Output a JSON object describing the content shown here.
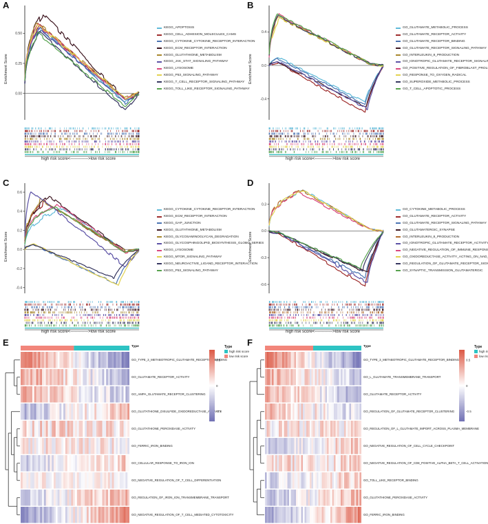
{
  "chart_data": [
    {
      "id": "A",
      "panel_letter": "A",
      "type": "line",
      "ylabel": "Enrichment Score",
      "xlabel": "high risk score<------------->low risk score",
      "yticks": [
        "0.50",
        "0.25",
        "0.00"
      ],
      "ylim": [
        -0.22,
        0.72
      ],
      "series": [
        {
          "name": "KEGG_APOPTOSIS",
          "color": "#5EB9D8",
          "peak": 0.55,
          "peak_pos": 0.12,
          "tail": -0.07
        },
        {
          "name": "KEGG_CELL_ADHESION_MOLECULES_CAMS",
          "color": "#9E2B2B",
          "peak": 0.57,
          "peak_pos": 0.13,
          "tail": -0.05
        },
        {
          "name": "KEGG_CYTOKINE_CYTOKINE_RECEPTOR_INTERACTION",
          "color": "#4A73B2",
          "peak": 0.54,
          "peak_pos": 0.14,
          "tail": -0.08
        },
        {
          "name": "KEGG_ECM_RECEPTOR_INTERACTION",
          "color": "#3D1620",
          "peak": 0.66,
          "peak_pos": 0.16,
          "tail": -0.05
        },
        {
          "name": "KEGG_GLUTATHIONE_METABOLISM",
          "color": "#A8872C",
          "peak": 0.59,
          "peak_pos": 0.11,
          "tail": -0.04
        },
        {
          "name": "KEGG_JAK_STAT_SIGNALING_PATHWAY",
          "color": "#5B51A5",
          "peak": 0.55,
          "peak_pos": 0.12,
          "tail": -0.06
        },
        {
          "name": "KEGG_LYSOSOME",
          "color": "#D9487E",
          "peak": 0.57,
          "peak_pos": 0.12,
          "tail": -0.05
        },
        {
          "name": "KEGG_P53_SIGNALING_PATHWAY",
          "color": "#E3D24F",
          "peak": 0.58,
          "peak_pos": 0.11,
          "tail": -0.04
        },
        {
          "name": "KEGG_T_CELL_RECEPTOR_SIGNALING_PATHWAY",
          "color": "#35355F",
          "peak": 0.51,
          "peak_pos": 0.13,
          "tail": -0.14
        },
        {
          "name": "KEGG_TOLL_LIKE_RECEPTOR_SIGNALING_PATHWAY",
          "color": "#57A24E",
          "peak": 0.5,
          "peak_pos": 0.12,
          "tail": -0.11
        }
      ]
    },
    {
      "id": "B",
      "panel_letter": "B",
      "type": "line",
      "ylabel": "Enrichment Score",
      "xlabel": "high risk score<------------->low risk score",
      "yticks": [
        "0.4",
        "0.0",
        "-0.4"
      ],
      "ylim": [
        -0.65,
        0.7
      ],
      "series": [
        {
          "name": "GO_GLUTAMATE_METABOLIC_PROCESS",
          "color": "#5EB9D8",
          "peak": -0.44,
          "peak_pos": 0.84,
          "tail": 0.1
        },
        {
          "name": "GO_GLUTAMATE_RECEPTOR_ACTIVITY",
          "color": "#9E2B2B",
          "peak": -0.56,
          "peak_pos": 0.84,
          "tail": 0.03
        },
        {
          "name": "GO_GLUTAMATE_RECEPTOR_BINDING",
          "color": "#4A73B2",
          "peak": -0.47,
          "peak_pos": 0.84,
          "tail": 0.08
        },
        {
          "name": "GO_GLUTAMATE_RECEPTOR_SIGNALING_PATHWAY",
          "color": "#3D1620",
          "peak": -0.5,
          "peak_pos": 0.85,
          "tail": 0.04
        },
        {
          "name": "GO_INTERLEUKIN_8_PRODUCTION",
          "color": "#A8872C",
          "peak": 0.58,
          "peak_pos": 0.08,
          "tail": 0.02
        },
        {
          "name": "GO_IONOTROPIC_GLUTAMATE_RECEPTOR_SIGNALING_PATHWAY",
          "color": "#5B51A5",
          "peak": -0.52,
          "peak_pos": 0.86,
          "tail": 0.05
        },
        {
          "name": "GO_POSITIVE_REGULATION_OF_FIBROBLAST_PROLIFERATION",
          "color": "#D9487E",
          "peak": 0.6,
          "peak_pos": 0.09,
          "tail": 0.02
        },
        {
          "name": "GO_RESPONSE_TO_OXYGEN_RADICAL",
          "color": "#E3D24F",
          "peak": 0.56,
          "peak_pos": 0.1,
          "tail": 0.02
        },
        {
          "name": "GO_SUPEROXIDE_METABOLIC_PROCESS",
          "color": "#35355F",
          "peak": 0.59,
          "peak_pos": 0.08,
          "tail": 0.02
        },
        {
          "name": "GO_T_CELL_APOPTOTIC_PROCESS",
          "color": "#57A24E",
          "peak": 0.62,
          "peak_pos": 0.07,
          "tail": 0.02
        }
      ]
    },
    {
      "id": "C",
      "panel_letter": "C",
      "type": "line",
      "ylabel": "Enrichment Score",
      "xlabel": "high risk score<------------->low risk score",
      "yticks": [
        "0.6",
        "0.4",
        "0.2",
        "0.0",
        "-0.2",
        "-0.4"
      ],
      "ylim": [
        -0.46,
        0.68
      ],
      "series": [
        {
          "name": "KEGG_CYTOKINE_CYTOKINE_RECEPTOR_INTERACTION",
          "color": "#5EB9D8",
          "peak": 0.43,
          "peak_pos": 0.33,
          "tail": -0.02
        },
        {
          "name": "KEGG_ECM_RECEPTOR_INTERACTION",
          "color": "#9E2B2B",
          "peak": 0.5,
          "peak_pos": 0.18,
          "tail": -0.03
        },
        {
          "name": "KEGG_GAP_JUNCTION",
          "color": "#4A73B2",
          "peak": -0.36,
          "peak_pos": 0.8,
          "tail": 0.05
        },
        {
          "name": "KEGG_GLUTATHIONE_METABOLISM",
          "color": "#3D1620",
          "peak": 0.55,
          "peak_pos": 0.22,
          "tail": -0.02
        },
        {
          "name": "KEGG_GLYCOSAMINOGLYCAN_DEGRADATION",
          "color": "#A8872C",
          "peak": 0.52,
          "peak_pos": 0.14,
          "tail": -0.02
        },
        {
          "name": "KEGG_GLYCOSPHINGOLIPID_BIOSYNTHESIS_GLOBO_SERIES",
          "color": "#5B51A5",
          "peak": 0.62,
          "peak_pos": 0.05,
          "tail": -0.18
        },
        {
          "name": "KEGG_LYSOSOME",
          "color": "#D9487E",
          "peak": 0.48,
          "peak_pos": 0.28,
          "tail": -0.03
        },
        {
          "name": "KEGG_MTOR_SIGNALING_PATHWAY",
          "color": "#E3D24F",
          "peak": -0.38,
          "peak_pos": 0.82,
          "tail": 0.06
        },
        {
          "name": "KEGG_NEUROACTIVE_LIGAND_RECEPTOR_INTERACTION",
          "color": "#35355F",
          "peak": -0.3,
          "peak_pos": 0.78,
          "tail": 0.05
        },
        {
          "name": "KEGG_P53_SIGNALING_PATHWAY",
          "color": "#57A24E",
          "peak": 0.45,
          "peak_pos": 0.25,
          "tail": -0.03
        }
      ]
    },
    {
      "id": "D",
      "panel_letter": "D",
      "type": "line",
      "ylabel": "Enrichment Score",
      "xlabel": "high risk score<------------->low risk score",
      "yticks": [
        "0.3",
        "0.0",
        "-0.3",
        "-0.6"
      ],
      "ylim": [
        -0.7,
        0.52
      ],
      "series": [
        {
          "name": "GO_CYTOKINE_METABOLIC_PROCESS",
          "color": "#5EB9D8",
          "peak": 0.46,
          "peak_pos": 0.3,
          "tail": 0.02
        },
        {
          "name": "GO_GLUTAMATE_RECEPTOR_ACTIVITY",
          "color": "#9E2B2B",
          "peak": -0.62,
          "peak_pos": 0.84,
          "tail": -0.02
        },
        {
          "name": "GO_GLUTAMATE_RECEPTOR_SIGNALING_PATHWAY",
          "color": "#4A73B2",
          "peak": -0.52,
          "peak_pos": 0.84,
          "tail": -0.02
        },
        {
          "name": "GO_GLUTAMATERGIC_SYNAPSE",
          "color": "#3D1620",
          "peak": -0.47,
          "peak_pos": 0.86,
          "tail": -0.02
        },
        {
          "name": "GO_INTERLEUKIN_8_PRODUCTION",
          "color": "#B06A2C",
          "peak": 0.46,
          "peak_pos": 0.28,
          "tail": 0.02
        },
        {
          "name": "GO_IONOTROPIC_GLUTAMATE_RECEPTOR_ACTIVITY",
          "color": "#5B51A5",
          "peak": -0.58,
          "peak_pos": 0.86,
          "tail": -0.02
        },
        {
          "name": "GO_NEGATIVE_REGULATION_OF_IMMUNE_RESPONSE",
          "color": "#D9487E",
          "peak": 0.43,
          "peak_pos": 0.26,
          "tail": 0.02
        },
        {
          "name": "GO_OXIDOREDUCTASE_ACTIVITY_ACTING_ON_NAD_P_H",
          "color": "#E3D24F",
          "peak": 0.45,
          "peak_pos": 0.3,
          "tail": 0.02
        },
        {
          "name": "GO_REGULATION_OF_GLUTAMATE_RECEPTOR_SIGNALING_PATHWAY",
          "color": "#35355F",
          "peak": -0.44,
          "peak_pos": 0.82,
          "tail": -0.02
        },
        {
          "name": "GO_SYNAPTIC_TRANSMISSION_GLUTAMATERGIC",
          "color": "#57A24E",
          "peak": -0.42,
          "peak_pos": 0.8,
          "tail": -0.02
        }
      ]
    },
    {
      "id": "E",
      "panel_letter": "E",
      "type": "heatmap",
      "annotation": {
        "title": "Type",
        "segments": [
          {
            "group": "low risk score",
            "color": "#F2867B",
            "frac": 0.49
          },
          {
            "group": "high risk score",
            "color": "#2EC3C3",
            "frac": 0.51
          }
        ]
      },
      "legend": {
        "title": "Type",
        "items": [
          {
            "label": "high risk score",
            "color": "#2EC3C3"
          },
          {
            "label": "low risk score",
            "color": "#F2867B"
          }
        ]
      },
      "colorbar": {
        "ticks": [
          "0.5",
          "0",
          "-0.5"
        ],
        "top_color": "#DC5844",
        "mid_color": "#FFFFFF",
        "bottom_color": "#7070B4"
      },
      "rows": [
        {
          "label": "GO_TYPE_3_METABOTROPIC_GLUTAMATE_RECEPTOR_BINDING",
          "bias": 1,
          "strength": 0.85,
          "base": 0,
          "noise": 0.5
        },
        {
          "label": "GO_GLUTAMATE_RECEPTOR_ACTIVITY",
          "bias": 1,
          "strength": 0.55,
          "base": 0.05,
          "noise": 0.55
        },
        {
          "label": "GO_AMPA_GLUTAMATE_RECEPTOR_CLUSTERING",
          "bias": 1,
          "strength": 0.4,
          "base": 0.05,
          "noise": 0.6
        },
        {
          "label": "GO_GLUTATHIONE_DISULFIDE_OXIDOREDUCTASE_ACTIVITY",
          "bias": -1,
          "strength": 0.5,
          "base": 0,
          "noise": 0.6
        },
        {
          "label": "GO_GLUTATHIONE_PEROXIDASE_ACTIVITY",
          "bias": 0,
          "strength": 0,
          "base": 0.18,
          "noise": 0.65
        },
        {
          "label": "GO_FERRIC_IRON_BINDING",
          "bias": 0,
          "strength": 0,
          "base": 0.08,
          "noise": 0.6
        },
        {
          "label": "GO_CELLULAR_RESPONSE_TO_IRON_ION",
          "bias": -1,
          "strength": 0.3,
          "base": 0,
          "noise": 0.55
        },
        {
          "label": "GO_NEGATIVE_REGULATION_OF_T_CELL_DIFFERENTIATION",
          "bias": 0,
          "strength": 0,
          "base": 0.05,
          "noise": 0.45
        },
        {
          "label": "GO_REGULATION_OF_IRON_ION_TRANSMEMBRANE_TRANSPORT",
          "bias": -1,
          "strength": 0.45,
          "base": 0.05,
          "noise": 0.55
        },
        {
          "label": "GO_NEGATIVE_REGULATION_OF_T_CELL_MEDIATED_CYTOTOXICITY",
          "bias": -1,
          "strength": 0.7,
          "base": 0,
          "noise": 0.5
        }
      ],
      "dendrogram": [
        [
          0,
          [
            1,
            2
          ]
        ],
        [
          [
            3,
            [
              [
                4,
                5
              ],
              [
                6,
                7
              ]
            ]
          ],
          [
            8,
            9
          ]
        ]
      ]
    },
    {
      "id": "F",
      "panel_letter": "F",
      "type": "heatmap",
      "annotation": {
        "title": "Type",
        "segments": [
          {
            "group": "low risk score",
            "color": "#F2867B",
            "frac": 0.5
          },
          {
            "group": "high risk score",
            "color": "#2EC3C3",
            "frac": 0.5
          }
        ]
      },
      "legend": {
        "title": "Type",
        "items": [
          {
            "label": "high risk score",
            "color": "#2EC3C3"
          },
          {
            "label": "low risk score",
            "color": "#F2867B"
          }
        ]
      },
      "colorbar": {
        "ticks": [
          "0.5",
          "0",
          "-0.5"
        ],
        "top_color": "#DC5844",
        "mid_color": "#FFFFFF",
        "bottom_color": "#7070B4"
      },
      "rows": [
        {
          "label": "GO_TYPE_3_METABOTROPIC_GLUTAMATE_RECEPTOR_BINDING",
          "bias": 1,
          "strength": 0.85,
          "base": 0,
          "noise": 0.5
        },
        {
          "label": "GO_L_GLUTAMATE_TRANSMEMBRANE_TRANSPORT",
          "bias": 1,
          "strength": 0.45,
          "base": 0.05,
          "noise": 0.55
        },
        {
          "label": "GO_GLUTAMATE_RECEPTOR_ACTIVITY",
          "bias": 1,
          "strength": 0.6,
          "base": 0,
          "noise": 0.55
        },
        {
          "label": "GO_REGULATION_OF_GLUTAMATE_RECEPTOR_CLUSTERING",
          "bias": 1,
          "strength": 0.35,
          "base": 0.05,
          "noise": 0.6
        },
        {
          "label": "GO_REGULATION_OF_L_GLUTAMATE_IMPORT_ACROSS_PLASMA_MEMBRANE",
          "bias": 0,
          "strength": 0,
          "base": 0.1,
          "noise": 0.6
        },
        {
          "label": "GO_NEGATIVE_REGULATION_OF_CELL_CYCLE_CHECKPOINT",
          "bias": -1,
          "strength": 0.35,
          "base": 0,
          "noise": 0.55
        },
        {
          "label": "GO_NEGATIVE_REGULATION_OF_CD8_POSITIVE_ALPHA_BETA_T_CELL_ACTIVATION",
          "bias": 0,
          "strength": 0,
          "base": 0.15,
          "noise": 0.6
        },
        {
          "label": "GO_TOLL_LIKE_RECEPTOR_BINDING",
          "bias": -1,
          "strength": 0.3,
          "base": 0,
          "noise": 0.55
        },
        {
          "label": "GO_GLUTATHIONE_PEROXIDASE_ACTIVITY",
          "bias": -1,
          "strength": 0.5,
          "base": 0,
          "noise": 0.55
        },
        {
          "label": "GO_FERRIC_IRON_BINDING",
          "bias": -1,
          "strength": 0.75,
          "base": 0,
          "noise": 0.5
        }
      ],
      "dendrogram": [
        [
          [
            0,
            1
          ],
          2
        ],
        [
          [
            [
              3,
              4
            ],
            [
              5,
              6
            ]
          ],
          [
            [
              7,
              8
            ],
            9
          ]
        ]
      ]
    }
  ]
}
